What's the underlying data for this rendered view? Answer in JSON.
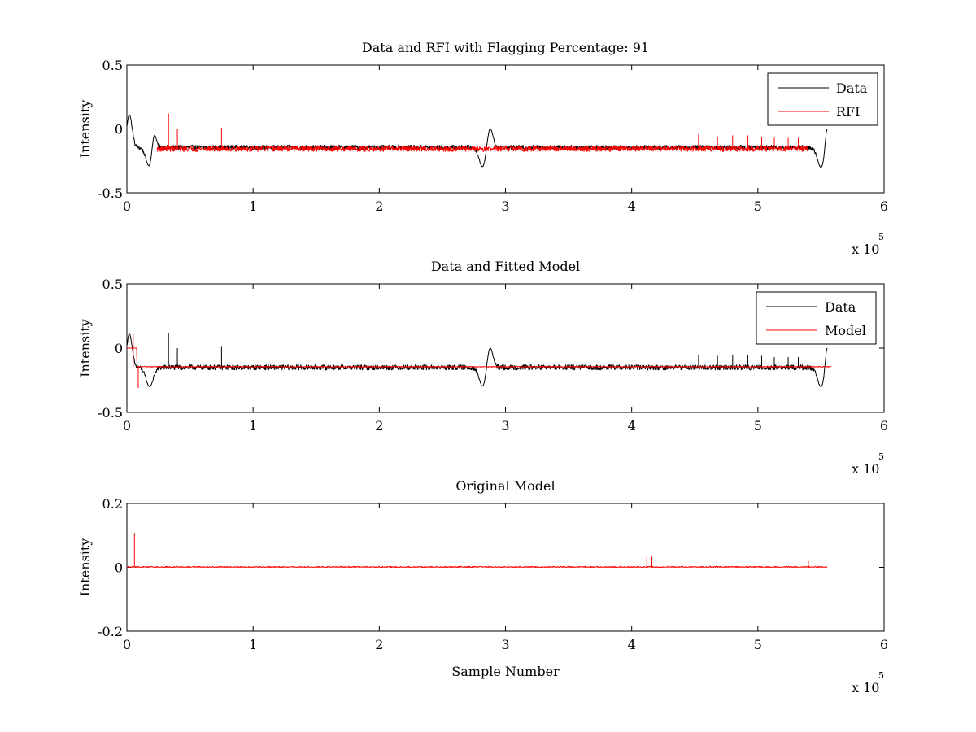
{
  "figure": {
    "background": "#ffffff"
  },
  "colors": {
    "data": "#000000",
    "rfi": "#ff0000",
    "model": "#ff0000"
  },
  "chart_data": [
    {
      "type": "line",
      "title": "Data and RFI with Flagging Percentage: 91",
      "xlabel": "",
      "ylabel": "Intensity",
      "xlim": [
        0,
        600000
      ],
      "ylim": [
        -0.5,
        0.5
      ],
      "xticks": [
        0,
        100000,
        200000,
        300000,
        400000,
        500000,
        600000
      ],
      "xtick_labels": [
        "0",
        "1",
        "2",
        "3",
        "4",
        "5",
        "6"
      ],
      "yticks": [
        -0.5,
        0,
        0.5
      ],
      "ytick_labels": [
        "-0.5",
        "0",
        "0.5"
      ],
      "exponent_label": {
        "prefix": "x 10",
        "power": "5"
      },
      "legend": {
        "placement": "top-right",
        "entries": [
          "Data",
          "RFI"
        ]
      },
      "series": [
        {
          "name": "Data",
          "color": "#000000",
          "baseline": -0.145,
          "noise": 0.018,
          "x_range": [
            0,
            555000
          ],
          "features": [
            {
              "x": 2000,
              "value": 0.11,
              "width": 3000
            },
            {
              "x": 18000,
              "value": -0.3,
              "width": 4000
            },
            {
              "x": 22000,
              "value": -0.05,
              "width": 2500
            },
            {
              "x": 282000,
              "value": -0.3,
              "width": 4000
            },
            {
              "x": 288000,
              "value": 0.0,
              "width": 3000
            },
            {
              "x": 550000,
              "value": -0.3,
              "width": 4000
            },
            {
              "x": 555000,
              "value": 0.0,
              "width": 2000
            }
          ]
        },
        {
          "name": "RFI",
          "color": "#ff0000",
          "baseline": -0.155,
          "noise": 0.022,
          "x_range": [
            24000,
            540000
          ],
          "spikes": [
            {
              "x": 33000,
              "value": 0.12
            },
            {
              "x": 40000,
              "value": 0.0
            },
            {
              "x": 75000,
              "value": 0.01
            },
            {
              "x": 453000,
              "value": -0.04
            },
            {
              "x": 468000,
              "value": -0.06
            },
            {
              "x": 480000,
              "value": -0.05
            },
            {
              "x": 492000,
              "value": -0.05
            },
            {
              "x": 503000,
              "value": -0.06
            },
            {
              "x": 513000,
              "value": -0.07
            },
            {
              "x": 524000,
              "value": -0.07
            },
            {
              "x": 532000,
              "value": -0.07
            }
          ]
        }
      ]
    },
    {
      "type": "line",
      "title": "Data and Fitted Model",
      "xlabel": "",
      "ylabel": "Intensity",
      "xlim": [
        0,
        600000
      ],
      "ylim": [
        -0.5,
        0.5
      ],
      "xticks": [
        0,
        100000,
        200000,
        300000,
        400000,
        500000,
        600000
      ],
      "xtick_labels": [
        "0",
        "1",
        "2",
        "3",
        "4",
        "5",
        "6"
      ],
      "yticks": [
        -0.5,
        0,
        0.5
      ],
      "ytick_labels": [
        "-0.5",
        "0",
        "0.5"
      ],
      "exponent_label": {
        "prefix": "x 10",
        "power": "5"
      },
      "legend": {
        "placement": "top-right",
        "entries": [
          "Data",
          "Model"
        ]
      },
      "series": [
        {
          "name": "Data",
          "color": "#000000",
          "baseline": -0.15,
          "noise": 0.02,
          "x_range": [
            0,
            555000
          ],
          "features": [
            {
              "x": 2000,
              "value": 0.11,
              "width": 3000
            },
            {
              "x": 18000,
              "value": -0.3,
              "width": 4000
            },
            {
              "x": 282000,
              "value": -0.3,
              "width": 4000
            },
            {
              "x": 288000,
              "value": 0.0,
              "width": 3000
            },
            {
              "x": 550000,
              "value": -0.3,
              "width": 4000
            },
            {
              "x": 555000,
              "value": 0.0,
              "width": 2000
            }
          ],
          "spikes": [
            {
              "x": 33000,
              "value": 0.12
            },
            {
              "x": 40000,
              "value": 0.0
            },
            {
              "x": 75000,
              "value": 0.01
            },
            {
              "x": 453000,
              "value": -0.05
            },
            {
              "x": 468000,
              "value": -0.06
            },
            {
              "x": 480000,
              "value": -0.05
            },
            {
              "x": 492000,
              "value": -0.05
            },
            {
              "x": 503000,
              "value": -0.06
            },
            {
              "x": 513000,
              "value": -0.07
            },
            {
              "x": 524000,
              "value": -0.07
            },
            {
              "x": 532000,
              "value": -0.07
            }
          ]
        },
        {
          "name": "Model",
          "color": "#ff0000",
          "baseline": -0.145,
          "noise": 0.003,
          "x_range": [
            0,
            558000
          ],
          "steps": [
            {
              "x0": 0,
              "x1": 8000,
              "value": 0.0
            }
          ],
          "spikes": [
            {
              "x": 9000,
              "value": -0.31
            },
            {
              "x": 5000,
              "value": 0.11
            }
          ]
        }
      ]
    },
    {
      "type": "line",
      "title": "Original Model",
      "xlabel": "Sample Number",
      "ylabel": "Intensity",
      "xlim": [
        0,
        600000
      ],
      "ylim": [
        -0.2,
        0.2
      ],
      "xticks": [
        0,
        100000,
        200000,
        300000,
        400000,
        500000,
        600000
      ],
      "xtick_labels": [
        "0",
        "1",
        "2",
        "3",
        "4",
        "5",
        "6"
      ],
      "yticks": [
        -0.2,
        0,
        0.2
      ],
      "ytick_labels": [
        "-0.2",
        "0",
        "0.2"
      ],
      "exponent_label": {
        "prefix": "x 10",
        "power": "5"
      },
      "legend": null,
      "series": [
        {
          "name": "Original Model",
          "color": "#ff0000",
          "baseline": 0.0,
          "noise": 0.004,
          "positive_only": true,
          "x_range": [
            0,
            555000
          ],
          "spikes": [
            {
              "x": 6000,
              "value": 0.108
            },
            {
              "x": 412000,
              "value": 0.032
            },
            {
              "x": 416000,
              "value": 0.033
            },
            {
              "x": 540000,
              "value": 0.02
            }
          ]
        }
      ]
    }
  ]
}
